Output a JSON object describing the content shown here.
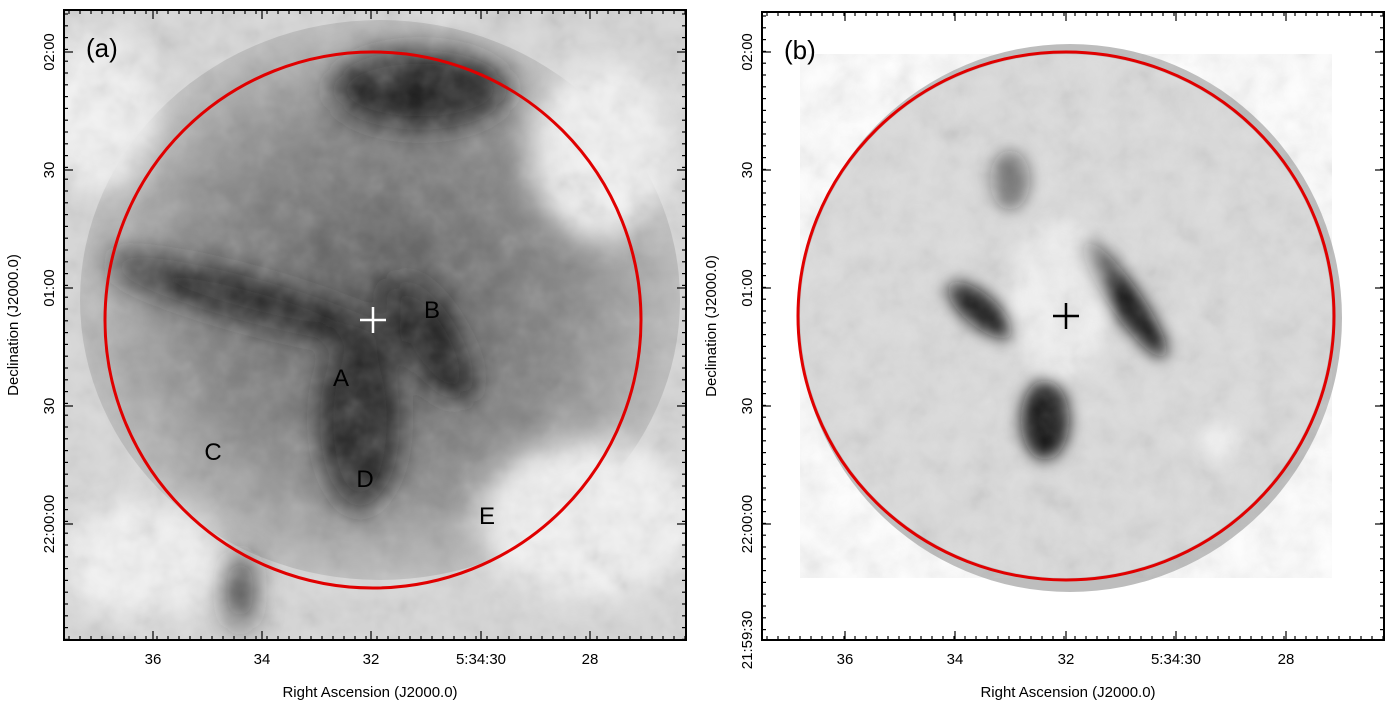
{
  "panels": [
    {
      "label": "(a)",
      "x_axis_label": "Right Ascension (J2000.0)",
      "y_axis_label": "Declination (J2000.0)",
      "x_ticks": [
        "36",
        "34",
        "32",
        "5:34:30",
        "28"
      ],
      "y_ticks": [
        "02:00",
        "30",
        "01:00",
        "30",
        "22:00:00"
      ],
      "annotations": [
        "B",
        "A",
        "C",
        "D",
        "E"
      ]
    },
    {
      "label": "(b)",
      "x_axis_label": "Right Ascension (J2000.0)",
      "y_axis_label": "Declination (J2000.0)",
      "x_ticks": [
        "36",
        "34",
        "32",
        "5:34:30",
        "28"
      ],
      "y_ticks": [
        "02:00",
        "30",
        "01:00",
        "30",
        "22:00:00",
        "21:59:30"
      ],
      "annotations": []
    }
  ]
}
